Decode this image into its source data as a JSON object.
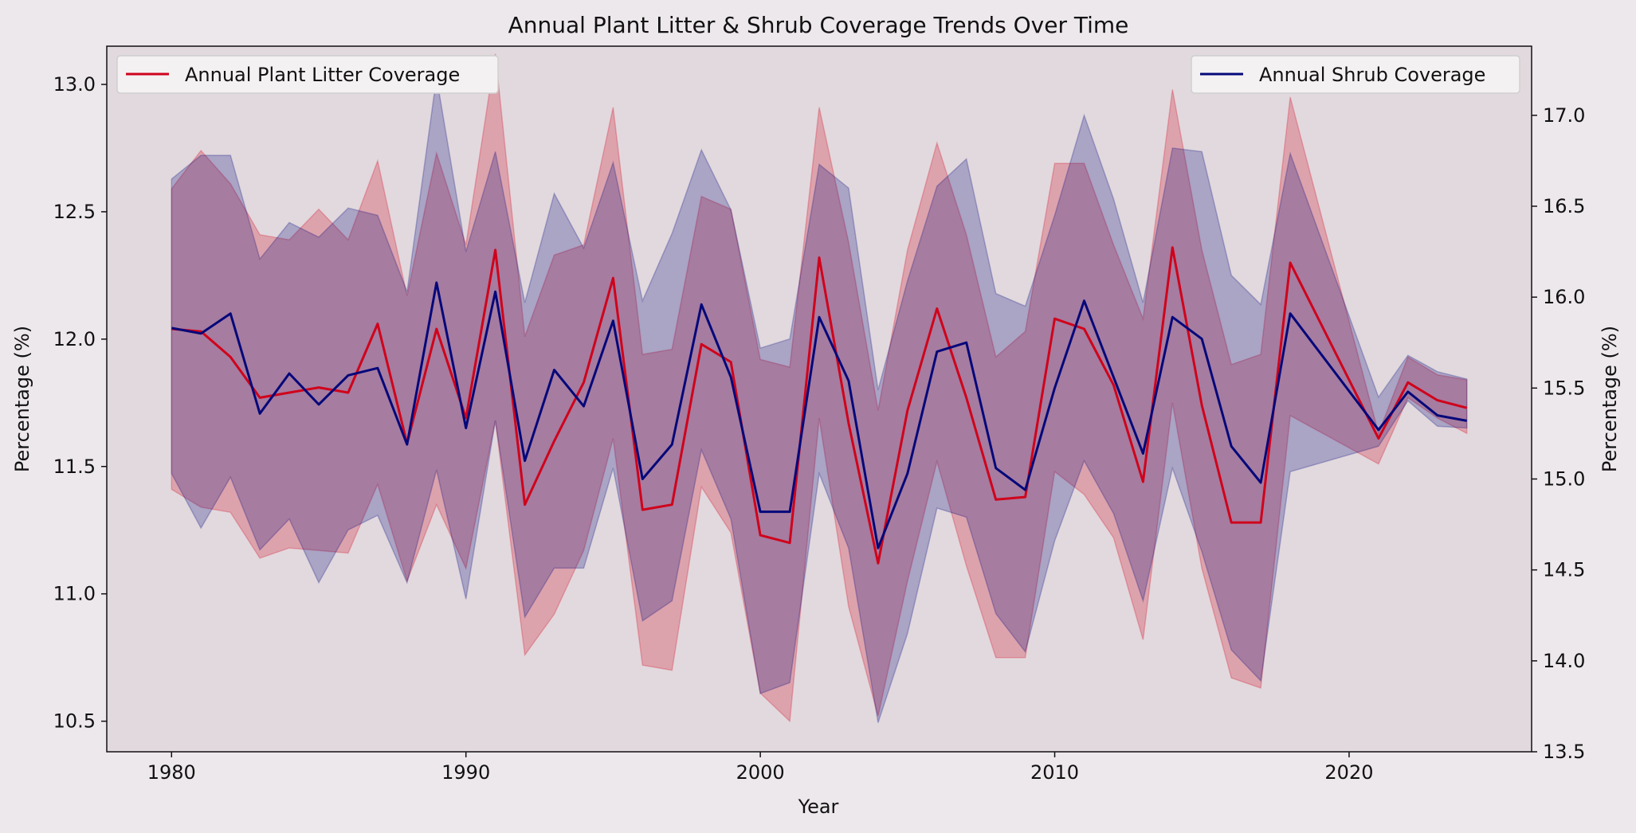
{
  "chart_data": {
    "type": "line",
    "title": "Annual Plant Litter & Shrub Coverage Trends Over Time",
    "xlabel": "Year",
    "ylabel_left": "Percentage (%)",
    "ylabel_right": "Percentage (%)",
    "xlim": [
      1977.8,
      2026.2
    ],
    "ylim_left": [
      10.38,
      13.15
    ],
    "ylim_right": [
      13.5,
      17.38
    ],
    "xticks": [
      1980,
      1990,
      2000,
      2010,
      2020
    ],
    "yticks_left": [
      "10.5",
      "11.0",
      "11.5",
      "12.0",
      "12.5",
      "13.0"
    ],
    "yticks_right": [
      "13.5",
      "14.0",
      "14.5",
      "15.0",
      "15.5",
      "16.0",
      "16.5",
      "17.0"
    ],
    "grid": false,
    "x": [
      1980,
      1981,
      1982,
      1983,
      1984,
      1985,
      1986,
      1987,
      1988,
      1989,
      1990,
      1991,
      1992,
      1993,
      1994,
      1995,
      1996,
      1997,
      1998,
      1999,
      2000,
      2001,
      2002,
      2003,
      2004,
      2005,
      2006,
      2007,
      2008,
      2009,
      2010,
      2011,
      2012,
      2013,
      2014,
      2015,
      2016,
      2017,
      2018,
      2021,
      2022,
      2023,
      2024
    ],
    "series": [
      {
        "name": "Annual Plant Litter Coverage",
        "axis": "left",
        "color": "#d0021b",
        "legend_position": "upper-left",
        "values": [
          12.04,
          12.03,
          11.93,
          11.77,
          11.79,
          11.81,
          11.79,
          12.06,
          11.59,
          12.04,
          11.69,
          12.35,
          11.35,
          11.6,
          11.83,
          12.24,
          11.33,
          11.35,
          11.98,
          11.91,
          11.23,
          11.2,
          12.32,
          11.67,
          11.12,
          11.72,
          12.12,
          11.77,
          11.37,
          11.38,
          12.08,
          12.04,
          11.82,
          11.44,
          12.36,
          11.74,
          11.28,
          11.28,
          12.3,
          11.61,
          11.83,
          11.76,
          11.73
        ],
        "lower": [
          11.41,
          11.34,
          11.32,
          11.14,
          11.18,
          11.17,
          11.16,
          11.43,
          11.05,
          11.35,
          11.1,
          11.68,
          10.76,
          10.92,
          11.17,
          11.61,
          10.72,
          10.7,
          11.42,
          11.24,
          10.61,
          10.5,
          11.69,
          10.95,
          10.52,
          11.05,
          11.52,
          11.11,
          10.75,
          10.75,
          11.48,
          11.39,
          11.22,
          10.82,
          11.75,
          11.1,
          10.67,
          10.63,
          11.7,
          11.51,
          11.77,
          11.69,
          11.63
        ],
        "upper": [
          12.59,
          12.74,
          12.61,
          12.41,
          12.39,
          12.51,
          12.39,
          12.7,
          12.17,
          12.73,
          12.37,
          13.12,
          12.01,
          12.33,
          12.37,
          12.91,
          11.94,
          11.96,
          12.56,
          12.51,
          11.92,
          11.89,
          12.91,
          12.38,
          11.72,
          12.35,
          12.77,
          12.41,
          11.93,
          12.03,
          12.69,
          12.69,
          12.37,
          12.08,
          12.98,
          12.35,
          11.9,
          11.94,
          12.95,
          11.63,
          11.93,
          11.86,
          11.84
        ]
      },
      {
        "name": "Annual Shrub Coverage",
        "axis": "right",
        "color": "#05087a",
        "legend_position": "upper-right",
        "values": [
          15.83,
          15.8,
          15.91,
          15.36,
          15.58,
          15.41,
          15.57,
          15.61,
          15.19,
          16.08,
          15.28,
          16.03,
          15.1,
          15.6,
          15.4,
          15.87,
          15.0,
          15.19,
          15.96,
          15.56,
          14.82,
          14.82,
          15.89,
          15.54,
          14.62,
          15.03,
          15.7,
          15.75,
          15.06,
          14.94,
          15.5,
          15.98,
          15.56,
          15.14,
          15.89,
          15.77,
          15.18,
          14.98,
          15.91,
          15.27,
          15.48,
          15.35,
          15.32
        ],
        "lower": [
          15.03,
          14.73,
          15.01,
          14.61,
          14.78,
          14.43,
          14.72,
          14.8,
          14.43,
          15.05,
          14.34,
          15.32,
          14.24,
          14.51,
          14.51,
          15.06,
          14.22,
          14.33,
          15.16,
          14.78,
          13.82,
          13.88,
          15.03,
          14.62,
          13.66,
          14.15,
          14.84,
          14.79,
          14.26,
          14.05,
          14.66,
          15.1,
          14.81,
          14.33,
          15.06,
          14.6,
          14.06,
          13.89,
          15.04,
          15.18,
          15.43,
          15.29,
          15.28
        ],
        "upper": [
          16.65,
          16.78,
          16.78,
          16.21,
          16.41,
          16.33,
          16.49,
          16.45,
          16.03,
          17.21,
          16.25,
          16.8,
          15.97,
          16.57,
          16.27,
          16.74,
          15.98,
          16.35,
          16.81,
          16.48,
          15.72,
          15.77,
          16.73,
          16.6,
          15.49,
          16.09,
          16.61,
          16.76,
          16.02,
          15.95,
          16.45,
          17.0,
          16.54,
          15.97,
          16.82,
          16.8,
          16.12,
          15.96,
          16.79,
          15.45,
          15.68,
          15.59,
          15.55
        ]
      }
    ]
  }
}
